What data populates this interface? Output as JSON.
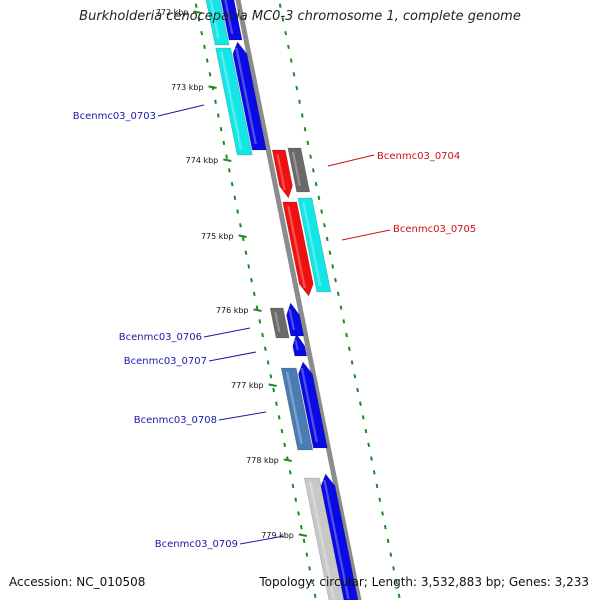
{
  "title": "Burkholderia cenocepacia MC0-3 chromosome 1, complete genome",
  "footer": {
    "accession": "Accession: NC_010508",
    "summary": "Topology: circular; Length: 3,532,883 bp; Genes: 3,233"
  },
  "colors": {
    "backbone": "#8c8c8c",
    "dots": "#1e8a1e",
    "forward_label": "#1a1aa8",
    "reverse_label": "#d01010",
    "blue": "#0a0ae6",
    "cyan": "#12e6e6",
    "red": "#f01010",
    "dark_gray": "#6a6a6a",
    "steel_blue": "#4a7cb4",
    "light_gray": "#c8c8c8"
  },
  "ticks": [
    "772 kbp",
    "773 kbp",
    "774 kbp",
    "775 kbp",
    "776 kbp",
    "777 kbp",
    "778 kbp",
    "779 kbp"
  ],
  "gene_labels": [
    {
      "text": "Bcenmc03_0703",
      "strand": "forward"
    },
    {
      "text": "Bcenmc03_0704",
      "strand": "reverse"
    },
    {
      "text": "Bcenmc03_0705",
      "strand": "reverse"
    },
    {
      "text": "Bcenmc03_0706",
      "strand": "forward"
    },
    {
      "text": "Bcenmc03_0707",
      "strand": "forward"
    },
    {
      "text": "Bcenmc03_0708",
      "strand": "forward"
    },
    {
      "text": "Bcenmc03_0709",
      "strand": "forward"
    }
  ]
}
